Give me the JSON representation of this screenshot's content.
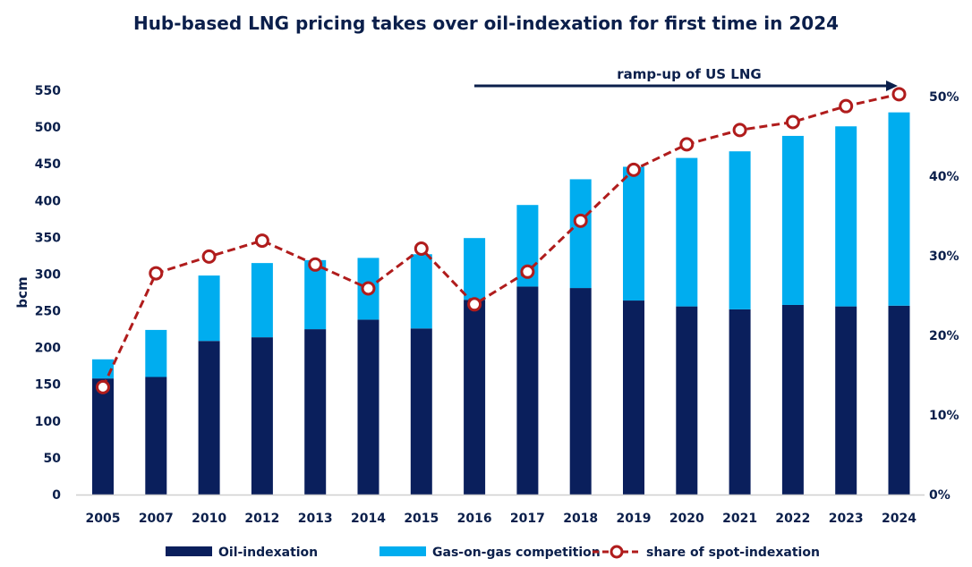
{
  "chart_data": {
    "type": "bar",
    "title": "Hub-based LNG pricing takes over oil-indexation for first time in 2024",
    "ylabel": "bcm",
    "ylim": [
      0,
      550
    ],
    "y_ticks": [
      "0",
      "50",
      "100",
      "150",
      "200",
      "250",
      "300",
      "350",
      "400",
      "450",
      "500",
      "550"
    ],
    "y2lim": [
      0,
      50
    ],
    "y2_ticks": [
      "0%",
      "10%",
      "20%",
      "30%",
      "40%",
      "50%"
    ],
    "grid": false,
    "legend_position": "bottom",
    "categories": [
      "2005",
      "2007",
      "2010",
      "2012",
      "2013",
      "2014",
      "2015",
      "2016",
      "2017",
      "2018",
      "2019",
      "2020",
      "2021",
      "2022",
      "2023",
      "2024"
    ],
    "series": [
      {
        "name": "Oil-indexation",
        "type": "stacked-bar",
        "color": "#0a1f5c",
        "values": [
          158,
          160,
          209,
          214,
          225,
          238,
          226,
          265,
          283,
          281,
          264,
          256,
          252,
          258,
          256,
          257
        ]
      },
      {
        "name": "Gas-on-gas competition",
        "type": "stacked-bar",
        "color": "#00adef",
        "values": [
          26,
          64,
          89,
          101,
          94,
          84,
          101,
          84,
          111,
          148,
          182,
          202,
          215,
          230,
          245,
          263
        ]
      },
      {
        "name": "share of spot-indexation",
        "type": "line",
        "axis": "right",
        "unit": "%",
        "color": "#b01c1c",
        "values": [
          13.5,
          27.8,
          29.9,
          31.9,
          28.9,
          25.9,
          30.9,
          23.9,
          28,
          34.4,
          40.8,
          44,
          45.8,
          46.8,
          48.8,
          50.3
        ]
      }
    ],
    "annotation": {
      "text": "ramp-up of US LNG",
      "from": "2016",
      "to": "2024"
    }
  }
}
